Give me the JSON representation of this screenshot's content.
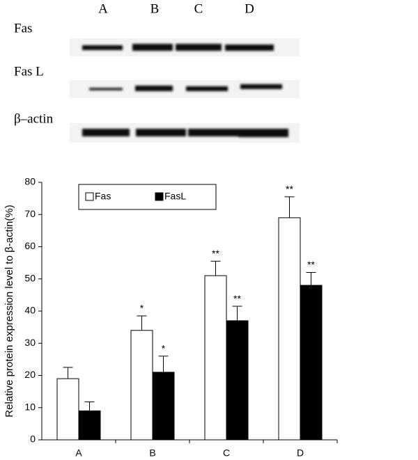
{
  "blot": {
    "lanes": [
      "A",
      "B",
      "C",
      "D"
    ],
    "rows": [
      "Fas",
      "Fas L",
      "β–actin"
    ]
  },
  "chart_data": {
    "type": "bar",
    "ylabel": "Relative protein expression level to β-actin(%)",
    "categories": [
      "A",
      "B",
      "C",
      "D"
    ],
    "series": [
      {
        "name": "Fas",
        "color": "#ffffff",
        "values": [
          19,
          34,
          51,
          69
        ],
        "errors": [
          3.5,
          4.5,
          4.5,
          6.5
        ],
        "annotations": [
          null,
          "*",
          "**",
          "**"
        ]
      },
      {
        "name": "FasL",
        "color": "#000000",
        "values": [
          9,
          21,
          37,
          48
        ],
        "errors": [
          2.8,
          5,
          4.5,
          4
        ],
        "annotations": [
          null,
          "*",
          "**",
          "**"
        ]
      }
    ],
    "ylim": [
      0,
      80
    ],
    "yticks": [
      0,
      10,
      20,
      30,
      40,
      50,
      60,
      70,
      80
    ],
    "grid": false,
    "legend": "top-left"
  }
}
